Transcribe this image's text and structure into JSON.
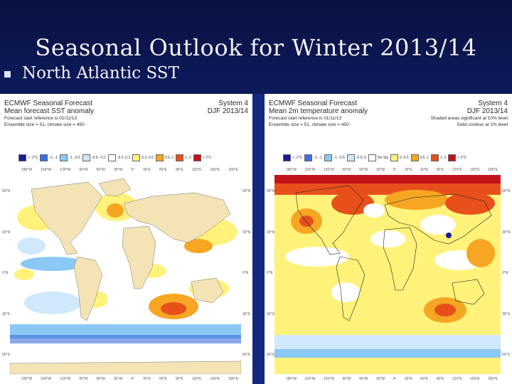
{
  "slide": {
    "title": "Seasonal Outlook for Winter 2013/14",
    "bullet": "North Atlantic SST"
  },
  "left_panel": {
    "heading_line1": "ECMWF Seasonal Forecast",
    "heading_line2": "Mean forecast SST anomaly",
    "heading_line3": "Forecast start reference is 01/11/13",
    "heading_line4": "Ensemble size = 51, climate size = 450",
    "system": "System 4",
    "period": "DJF 2013/14",
    "legend": [
      "< -2°C",
      "-2..-1",
      "-1..-0.5",
      "-0.5..-0.2",
      "-0.2..0.2",
      "0.2..0.5",
      "0.5..1",
      "1..2",
      "> 2°C"
    ],
    "legend_colors": [
      "#1a1a9a",
      "#3b6fdc",
      "#8cc8f5",
      "#cfe8fa",
      "#ffffff",
      "#fff27a",
      "#f6a623",
      "#e8501b",
      "#c4121a"
    ]
  },
  "right_panel": {
    "heading_line1": "ECMWF Seasonal Forecast",
    "heading_line2": "Mean 2m temperature anomaly",
    "heading_line3": "Forecast start reference is 01/11/13",
    "heading_line4": "Ensemble size = 51, climate size = 450",
    "system": "System 4",
    "period": "DJF 2013/14",
    "note1": "Shaded areas significant at 10% level",
    "note2": "Solid contour at 1% level",
    "legend": [
      "< -2°C",
      "-2..-1",
      "-1..-0.5",
      "-0.5..0",
      "No Sig",
      "0..0.5",
      "0.5..1",
      "1..2",
      "> 2°C"
    ],
    "legend_colors": [
      "#1a1a9a",
      "#3b6fdc",
      "#8cc8f5",
      "#cfe8fa",
      "#ffffff",
      "#fff27a",
      "#f6a623",
      "#e8501b",
      "#c4121a"
    ]
  },
  "longitudes": [
    "180°W",
    "150°W",
    "120°W",
    "90°W",
    "60°W",
    "30°W",
    "0°",
    "30°E",
    "60°E",
    "90°E",
    "120°E",
    "150°E",
    "180°E"
  ],
  "latitudes": [
    "60°N",
    "30°N",
    "0°N",
    "30°S",
    "60°S"
  ]
}
